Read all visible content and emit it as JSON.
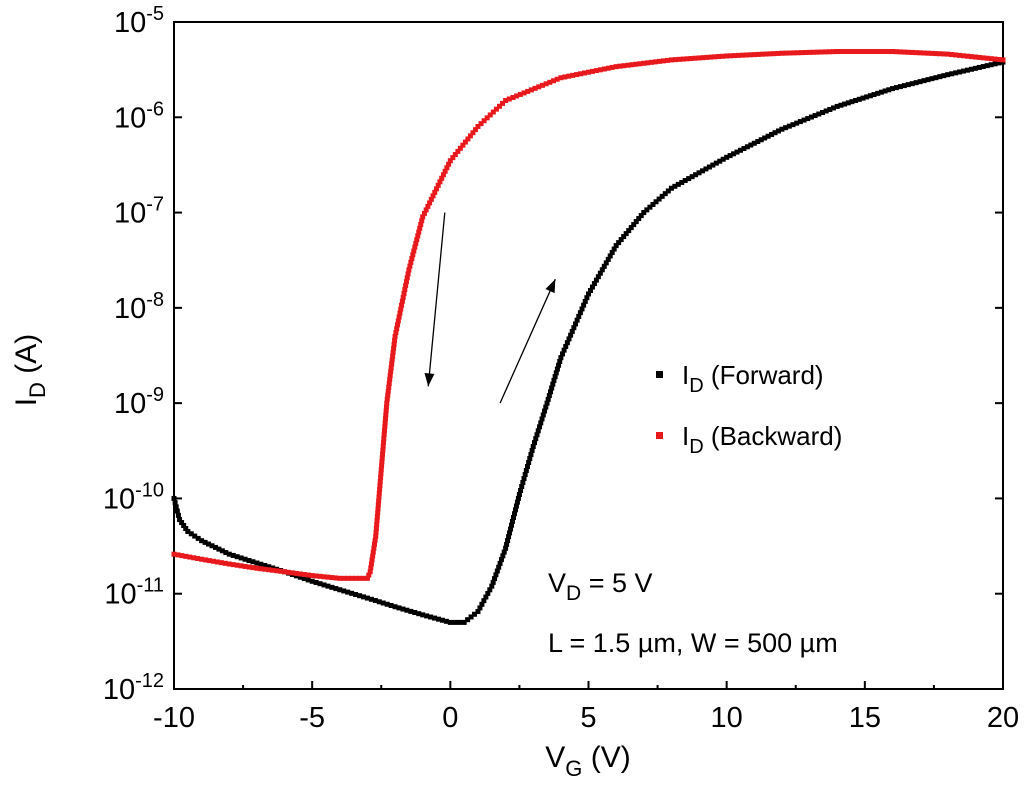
{
  "chart_data": {
    "type": "scatter",
    "y_scale": "log",
    "xlim": [
      -10,
      20
    ],
    "ylim_exponent": [
      -12,
      -5
    ],
    "x_ticks": [
      "-10",
      "-5",
      "0",
      "5",
      "10",
      "15",
      "20"
    ],
    "y_tick_base": "10",
    "y_tick_exponents": [
      "-12",
      "-11",
      "-10",
      "-9",
      "-8",
      "-7",
      "-6",
      "-5"
    ],
    "xlabel": {
      "main": "V",
      "sub": "G",
      "unit": " (V)"
    },
    "ylabel": {
      "main": "I",
      "sub": "D",
      "unit": " (A)"
    },
    "legend_position": "right-middle",
    "series": [
      {
        "name": {
          "main": "I",
          "sub": "D",
          "suffix": " (Forward)"
        },
        "color": "#000000",
        "points": [
          [
            -10,
            1e-10
          ],
          [
            -9.8,
            6e-11
          ],
          [
            -9.5,
            4.5e-11
          ],
          [
            -9,
            3.6e-11
          ],
          [
            -8,
            2.6e-11
          ],
          [
            -7,
            2.1e-11
          ],
          [
            -6,
            1.7e-11
          ],
          [
            -5,
            1.35e-11
          ],
          [
            -4,
            1.1e-11
          ],
          [
            -3,
            9e-12
          ],
          [
            -2,
            7.3e-12
          ],
          [
            -1,
            6e-12
          ],
          [
            0,
            5e-12
          ],
          [
            0.5,
            5e-12
          ],
          [
            1,
            6.5e-12
          ],
          [
            1.5,
            1.2e-11
          ],
          [
            2,
            3e-11
          ],
          [
            2.5,
            1.1e-10
          ],
          [
            3,
            3.5e-10
          ],
          [
            3.5,
            1e-09
          ],
          [
            4,
            3e-09
          ],
          [
            5,
            1.4e-08
          ],
          [
            6,
            4.5e-08
          ],
          [
            7,
            1e-07
          ],
          [
            8,
            1.8e-07
          ],
          [
            10,
            3.8e-07
          ],
          [
            12,
            7.5e-07
          ],
          [
            14,
            1.3e-06
          ],
          [
            16,
            2e-06
          ],
          [
            18,
            2.8e-06
          ],
          [
            20,
            3.8e-06
          ]
        ]
      },
      {
        "name": {
          "main": "I",
          "sub": "D",
          "suffix": " (Backward)"
        },
        "color": "#e8191c",
        "points": [
          [
            20,
            4e-06
          ],
          [
            18,
            4.6e-06
          ],
          [
            16,
            4.9e-06
          ],
          [
            14,
            4.9e-06
          ],
          [
            12,
            4.7e-06
          ],
          [
            10,
            4.4e-06
          ],
          [
            8,
            4e-06
          ],
          [
            6,
            3.4e-06
          ],
          [
            4,
            2.6e-06
          ],
          [
            2,
            1.5e-06
          ],
          [
            1,
            8e-07
          ],
          [
            0,
            3.5e-07
          ],
          [
            -1,
            9e-08
          ],
          [
            -1.5,
            2.5e-08
          ],
          [
            -2,
            5e-09
          ],
          [
            -2.3,
            1e-09
          ],
          [
            -2.5,
            2e-10
          ],
          [
            -2.7,
            4e-11
          ],
          [
            -2.9,
            1.7e-11
          ],
          [
            -3,
            1.45e-11
          ],
          [
            -4,
            1.45e-11
          ],
          [
            -5,
            1.55e-11
          ],
          [
            -6,
            1.7e-11
          ],
          [
            -7,
            1.85e-11
          ],
          [
            -8,
            2.05e-11
          ],
          [
            -9,
            2.3e-11
          ],
          [
            -10,
            2.6e-11
          ]
        ]
      }
    ],
    "arrows": [
      {
        "direction": "down",
        "from": [
          -0.2,
          1e-07
        ],
        "to": [
          -0.8,
          1.5e-09
        ]
      },
      {
        "direction": "up",
        "from": [
          1.8,
          1e-09
        ],
        "to": [
          3.8,
          2e-08
        ]
      }
    ],
    "annotations": [
      {
        "main": "V",
        "sub": "D",
        "suffix": " = 5 V"
      },
      {
        "text": "L = 1.5 µm, W = 500 µm"
      }
    ]
  }
}
